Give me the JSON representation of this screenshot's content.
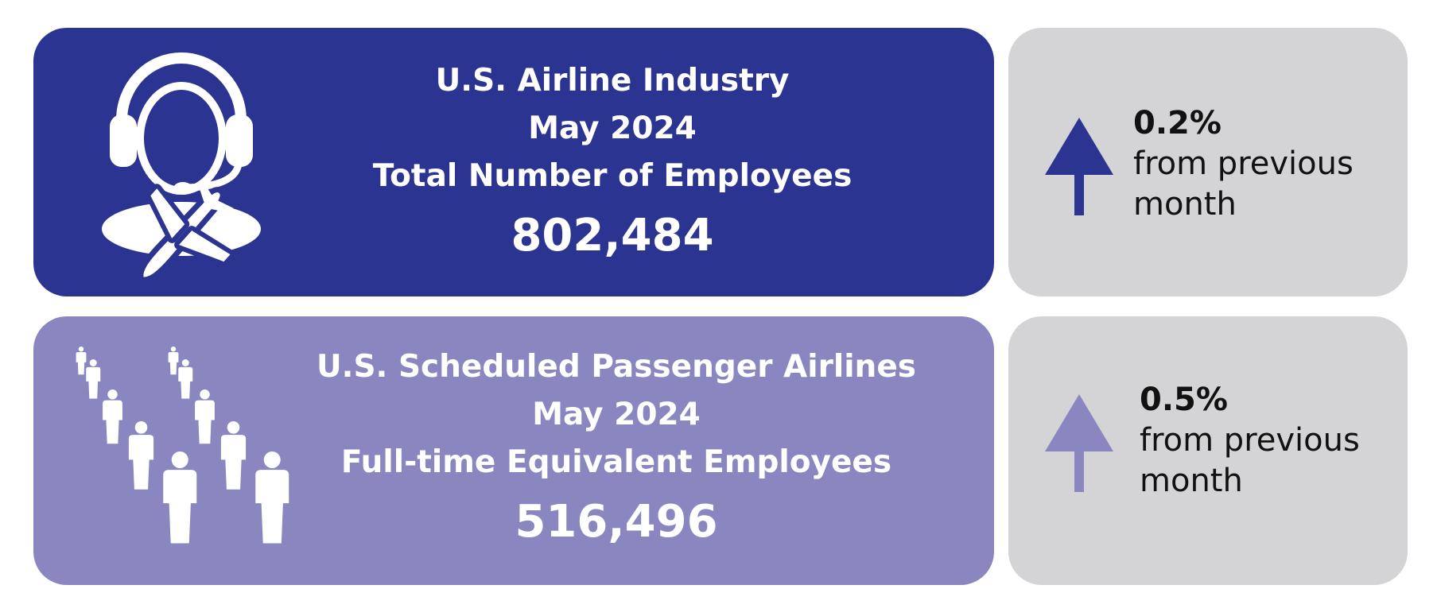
{
  "colors": {
    "primary": "#2c3491",
    "secondary": "#8a87c0",
    "side_panel": "#d4d4d6",
    "text_light": "#ffffff",
    "text_dark": "#111111"
  },
  "top_card": {
    "icon": "headset-airplane-icon",
    "line1": "U.S. Airline Industry",
    "line2": "May 2024",
    "line3": "Total Number of Employees",
    "value": "802,484",
    "change": {
      "direction": "up",
      "value": "0.2%",
      "line1": "from previous",
      "line2": "month"
    }
  },
  "bottom_card": {
    "icon": "people-crowd-icon",
    "line1": "U.S. Scheduled Passenger Airlines",
    "line2": "May 2024",
    "line3": "Full-time Equivalent Employees",
    "value": "516,496",
    "change": {
      "direction": "up",
      "value": "0.5%",
      "line1": "from previous",
      "line2": "month"
    }
  }
}
